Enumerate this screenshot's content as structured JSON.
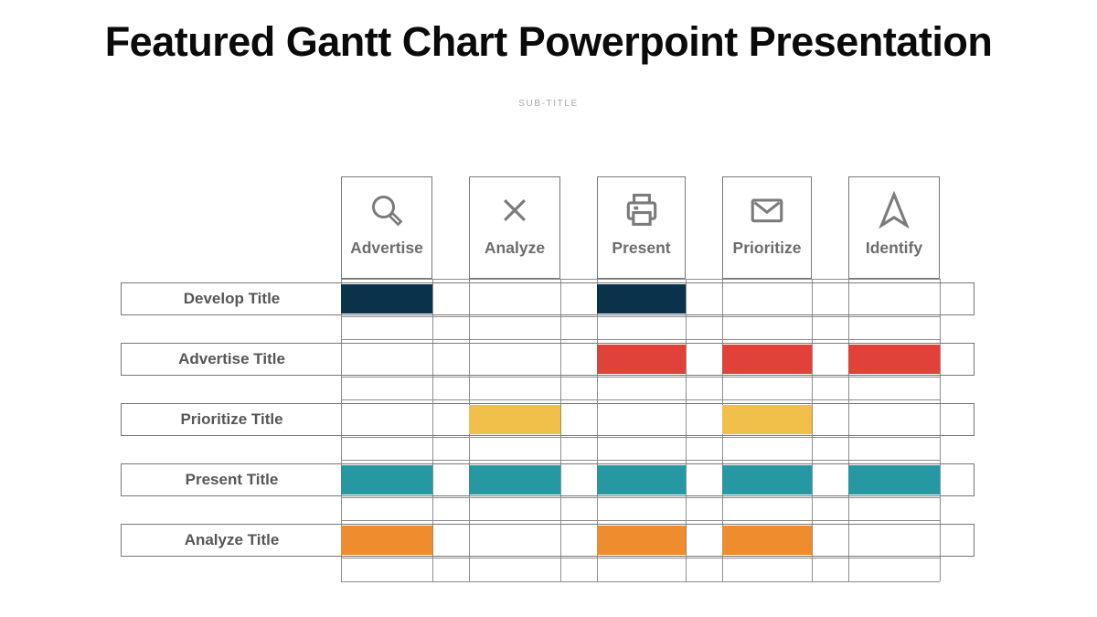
{
  "title": "Featured Gantt Chart Powerpoint Presentation",
  "subtitle": "SUB-TITLE",
  "colors": {
    "navy": "#0a324a",
    "red": "#e04239",
    "yellow": "#f0c04b",
    "teal": "#2598a2",
    "orange": "#ee8c2e",
    "grid_line": "#8d8d8d",
    "shape_border": "#787878",
    "icon": "#7b7b7b",
    "row_label_text": "#565656",
    "column_label_text": "#6d6d6d",
    "title_text": "#0a0a0a",
    "subtitle_text": "#a7a7a7"
  },
  "columns": [
    {
      "label": "Advertise",
      "icon": "search-icon"
    },
    {
      "label": "Analyze",
      "icon": "close-icon"
    },
    {
      "label": "Present",
      "icon": "printer-icon"
    },
    {
      "label": "Prioritize",
      "icon": "mail-icon"
    },
    {
      "label": "Identify",
      "icon": "navigation-arrow-icon"
    }
  ],
  "rows": [
    {
      "label": "Develop Title",
      "cells": [
        {
          "col": 0,
          "color": "navy"
        },
        {
          "col": 2,
          "color": "navy"
        }
      ]
    },
    {
      "label": "Advertise Title",
      "cells": [
        {
          "col": 2,
          "color": "red"
        },
        {
          "col": 3,
          "color": "red"
        },
        {
          "col": 4,
          "color": "red"
        }
      ]
    },
    {
      "label": "Prioritize Title",
      "cells": [
        {
          "col": 1,
          "color": "yellow"
        },
        {
          "col": 3,
          "color": "yellow"
        }
      ]
    },
    {
      "label": "Present Title",
      "cells": [
        {
          "col": 0,
          "color": "teal"
        },
        {
          "col": 1,
          "color": "teal"
        },
        {
          "col": 2,
          "color": "teal"
        },
        {
          "col": 3,
          "color": "teal"
        },
        {
          "col": 4,
          "color": "teal"
        }
      ]
    },
    {
      "label": "Analyze Title",
      "cells": [
        {
          "col": 0,
          "color": "orange"
        },
        {
          "col": 2,
          "color": "orange"
        },
        {
          "col": 3,
          "color": "orange"
        }
      ]
    }
  ],
  "chart_data": {
    "type": "table",
    "title": "Featured Gantt Chart Powerpoint Presentation",
    "subtitle": "SUB-TITLE",
    "columns": [
      "Advertise",
      "Analyze",
      "Present",
      "Prioritize",
      "Identify"
    ],
    "rows": [
      "Develop Title",
      "Advertise Title",
      "Prioritize Title",
      "Present Title",
      "Analyze Title"
    ],
    "filled_cells": [
      {
        "row": "Develop Title",
        "columns": [
          "Advertise",
          "Present"
        ],
        "color": "#0a324a"
      },
      {
        "row": "Advertise Title",
        "columns": [
          "Present",
          "Prioritize",
          "Identify"
        ],
        "color": "#e04239"
      },
      {
        "row": "Prioritize Title",
        "columns": [
          "Analyze",
          "Prioritize"
        ],
        "color": "#f0c04b"
      },
      {
        "row": "Present Title",
        "columns": [
          "Advertise",
          "Analyze",
          "Present",
          "Prioritize",
          "Identify"
        ],
        "color": "#2598a2"
      },
      {
        "row": "Analyze Title",
        "columns": [
          "Advertise",
          "Present",
          "Prioritize"
        ],
        "color": "#ee8c2e"
      }
    ],
    "legend": false,
    "grid": true
  }
}
